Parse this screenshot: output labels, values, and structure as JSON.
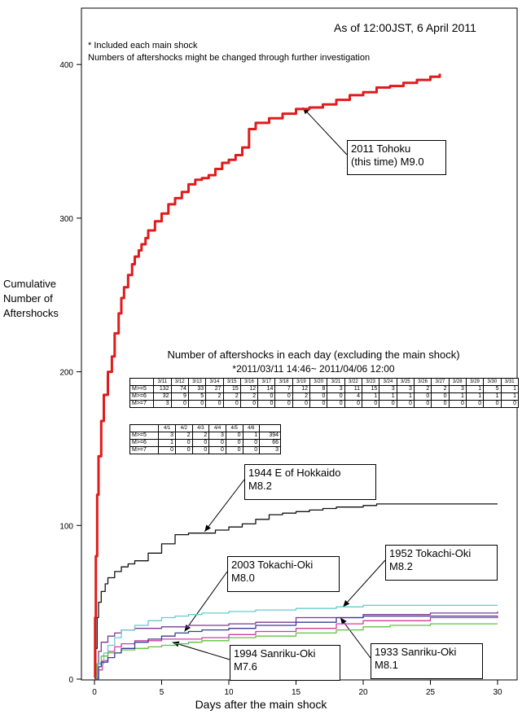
{
  "chart_data": {
    "type": "line",
    "as_of": "As of 12:00JST, 6 April 2011",
    "notes": [
      "* Included each main shock",
      "Numbers of aftershocks might be changed through further investigation"
    ],
    "ylabel": [
      "Cumulative",
      "Number of",
      "Aftershocks"
    ],
    "xlabel": "Days after the main shock",
    "xlim": [
      0,
      30
    ],
    "ylim": [
      0,
      420
    ],
    "x_ticks": [
      "0",
      "5",
      "10",
      "15",
      "20",
      "25",
      "30"
    ],
    "y_ticks": [
      "0",
      "100",
      "200",
      "300",
      "400"
    ],
    "series": [
      {
        "name": "2011 Tohoku (this time) M9.0",
        "color": "#e11b1b",
        "x": [
          0,
          0.05,
          0.1,
          0.2,
          0.3,
          0.5,
          0.7,
          1.0,
          1.3,
          1.5,
          1.8,
          2.0,
          2.2,
          2.5,
          2.8,
          3.0,
          3.3,
          3.5,
          3.8,
          4.0,
          4.5,
          5.0,
          5.5,
          6.0,
          6.5,
          7.0,
          7.5,
          8.0,
          8.5,
          9.0,
          9.5,
          10.0,
          10.5,
          11.0,
          11.5,
          12.0,
          13.0,
          14.0,
          15.0,
          16.0,
          17.0,
          18.0,
          19.0,
          20.0,
          21.0,
          22.0,
          23.0,
          24.0,
          25.0,
          25.7
        ],
        "y": [
          1,
          40,
          80,
          120,
          145,
          168,
          185,
          200,
          210,
          225,
          238,
          248,
          255,
          263,
          270,
          275,
          279,
          283,
          287,
          292,
          298,
          303,
          309,
          313,
          317,
          322,
          325,
          326,
          328,
          332,
          336,
          338,
          341,
          346,
          358,
          362,
          365,
          368,
          371,
          372,
          374,
          377,
          380,
          382,
          385,
          386,
          388,
          390,
          392,
          394
        ]
      },
      {
        "name": "1944 E of Hokkaido M8.2",
        "color": "#111111",
        "x": [
          0,
          0.1,
          0.2,
          0.3,
          0.5,
          0.8,
          1.0,
          1.5,
          2.0,
          2.5,
          3.0,
          4.0,
          5.0,
          6.0,
          7.0,
          8.0,
          9.0,
          10.0,
          11.0,
          12.0,
          13.0,
          14.0,
          15.0,
          16.0,
          17.0,
          18.0,
          19.0,
          20.0,
          21.0,
          22.0,
          25.0,
          30.0
        ],
        "y": [
          1,
          20,
          40,
          50,
          57,
          62,
          66,
          70,
          73,
          75,
          77,
          82,
          88,
          94,
          95,
          95,
          97,
          99,
          101,
          104,
          107,
          108,
          109,
          110,
          111,
          112,
          112,
          113,
          114,
          114,
          114,
          114
        ]
      },
      {
        "name": "1952 Tokachi-Oki M8.2",
        "color": "#66cccc",
        "x": [
          0,
          0.3,
          0.7,
          1.0,
          1.5,
          2.0,
          3.0,
          4.0,
          5.0,
          6.0,
          7.0,
          8.0,
          10.0,
          12.0,
          15.0,
          18.0,
          20.0,
          25.0,
          30.0
        ],
        "y": [
          0,
          10,
          17,
          22,
          27,
          32,
          35,
          38,
          40,
          41,
          42,
          43,
          44,
          45,
          46,
          47,
          48,
          48,
          48
        ]
      },
      {
        "name": "2003 Tokachi-Oki M8.0",
        "color": "#7a3a94",
        "x": [
          0,
          0.3,
          0.5,
          1.0,
          1.5,
          2.0,
          3.0,
          4.0,
          5.0,
          6.0,
          7.0,
          8.0,
          10.0,
          12.0,
          15.0,
          20.0,
          25.0,
          30.0
        ],
        "y": [
          0,
          18,
          24,
          28,
          30,
          32,
          33,
          33,
          34,
          34,
          35,
          35,
          36,
          37,
          40,
          42,
          43,
          44
        ]
      },
      {
        "name": "1994 Sanriku-Oki M7.6",
        "color": "#5ec43a",
        "x": [
          0,
          0.2,
          0.5,
          1.0,
          2.0,
          3.0,
          4.0,
          5.0,
          6.0,
          7.0,
          8.0,
          10.0,
          12.0,
          15.0,
          18.0,
          20.0,
          22.0,
          25.0,
          30.0
        ],
        "y": [
          0,
          10,
          15,
          17,
          19,
          20,
          21,
          22,
          23,
          24,
          25,
          27,
          28,
          30,
          32,
          34,
          35,
          36,
          36
        ]
      },
      {
        "name": "1933 Sanriku-Oki M8.1",
        "color": "#3a3a9a",
        "x": [
          0,
          0.3,
          0.5,
          1.0,
          1.5,
          2.0,
          3.0,
          4.0,
          5.0,
          6.0,
          7.0,
          8.0,
          10.0,
          12.0,
          15.0,
          18.0,
          20.0,
          25.0,
          30.0
        ],
        "y": [
          0,
          8,
          11,
          14,
          17,
          20,
          24,
          26,
          28,
          30,
          31,
          32,
          33,
          35,
          37,
          40,
          41,
          41,
          41
        ]
      },
      {
        "name": "magenta",
        "color": "#d03ea0",
        "x": [
          0,
          0.3,
          0.6,
          1.0,
          1.5,
          2.0,
          3.0,
          4.0,
          5.0,
          6.0,
          8.0,
          10.0,
          12.0,
          15.0,
          18.0,
          20.0,
          25.0,
          30.0
        ],
        "y": [
          0,
          6,
          12,
          18,
          21,
          23,
          25,
          25,
          26,
          26,
          27,
          29,
          31,
          33,
          36,
          38,
          40,
          41
        ]
      }
    ],
    "annotations": [
      {
        "lines": [
          "2011 Tohoku",
          "(this time) M9.0"
        ],
        "arrow_to": [
          15.5,
          372
        ]
      },
      {
        "lines": [
          "1944 E of Hokkaido",
          "M8.2"
        ],
        "arrow_to": [
          8.2,
          96
        ]
      },
      {
        "lines": [
          "2003 Tokachi-Oki",
          "M8.0"
        ],
        "arrow_to": [
          6.7,
          31
        ]
      },
      {
        "lines": [
          "1952 Tokachi-Oki",
          "M8.2"
        ],
        "arrow_to": [
          18.5,
          47
        ]
      },
      {
        "lines": [
          "1994 Sanriku-Oki",
          "M7.6"
        ],
        "arrow_to": [
          5.8,
          24
        ]
      },
      {
        "lines": [
          "1933 Sanriku-Oki",
          "M8.1"
        ],
        "arrow_to": [
          18.3,
          40
        ]
      }
    ],
    "table": {
      "title": "Number of aftershocks in each day (excluding the main shock)",
      "subtitle": "*2011/03/11 14:46~ 2011/04/06 12:00",
      "part1": {
        "dates": [
          "3/11",
          "3/12",
          "3/13",
          "3/14",
          "3/15",
          "3/16",
          "3/17",
          "3/18",
          "3/19",
          "3/20",
          "3/21",
          "3/22",
          "3/23",
          "3/24",
          "3/25",
          "3/26",
          "3/27",
          "3/28",
          "3/29",
          "3/30",
          "3/31"
        ],
        "rows": [
          {
            "label": "M>=5",
            "values": [
              "132",
              "74",
              "33",
              "27",
              "15",
              "12",
              "14",
              "7",
              "12",
              "8",
              "3",
              "11",
              "15",
              "3",
              "3",
              "2",
              "2",
              "3",
              "1",
              "5",
              "1"
            ]
          },
          {
            "label": "M>=6",
            "values": [
              "32",
              "9",
              "5",
              "2",
              "2",
              "2",
              "0",
              "0",
              "2",
              "0",
              "0",
              "4",
              "1",
              "1",
              "1",
              "0",
              "0",
              "1",
              "1",
              "1",
              "1"
            ]
          },
          {
            "label": "M>=7",
            "values": [
              "3",
              "0",
              "0",
              "0",
              "0",
              "0",
              "0",
              "0",
              "0",
              "0",
              "0",
              "0",
              "0",
              "0",
              "0",
              "0",
              "0",
              "0",
              "0",
              "0",
              "0"
            ]
          }
        ]
      },
      "part2": {
        "dates": [
          "4/1",
          "4/2",
          "4/3",
          "4/4",
          "4/5",
          "4/6",
          ""
        ],
        "rows": [
          {
            "label": "M>=5",
            "values": [
              "3",
              "2",
              "2",
              "3",
              "0",
              "1",
              "394"
            ]
          },
          {
            "label": "M>=6",
            "values": [
              "1",
              "0",
              "0",
              "0",
              "0",
              "0",
              "66"
            ]
          },
          {
            "label": "M>=7",
            "values": [
              "0",
              "0",
              "0",
              "0",
              "0",
              "0",
              "3"
            ]
          }
        ]
      }
    }
  }
}
